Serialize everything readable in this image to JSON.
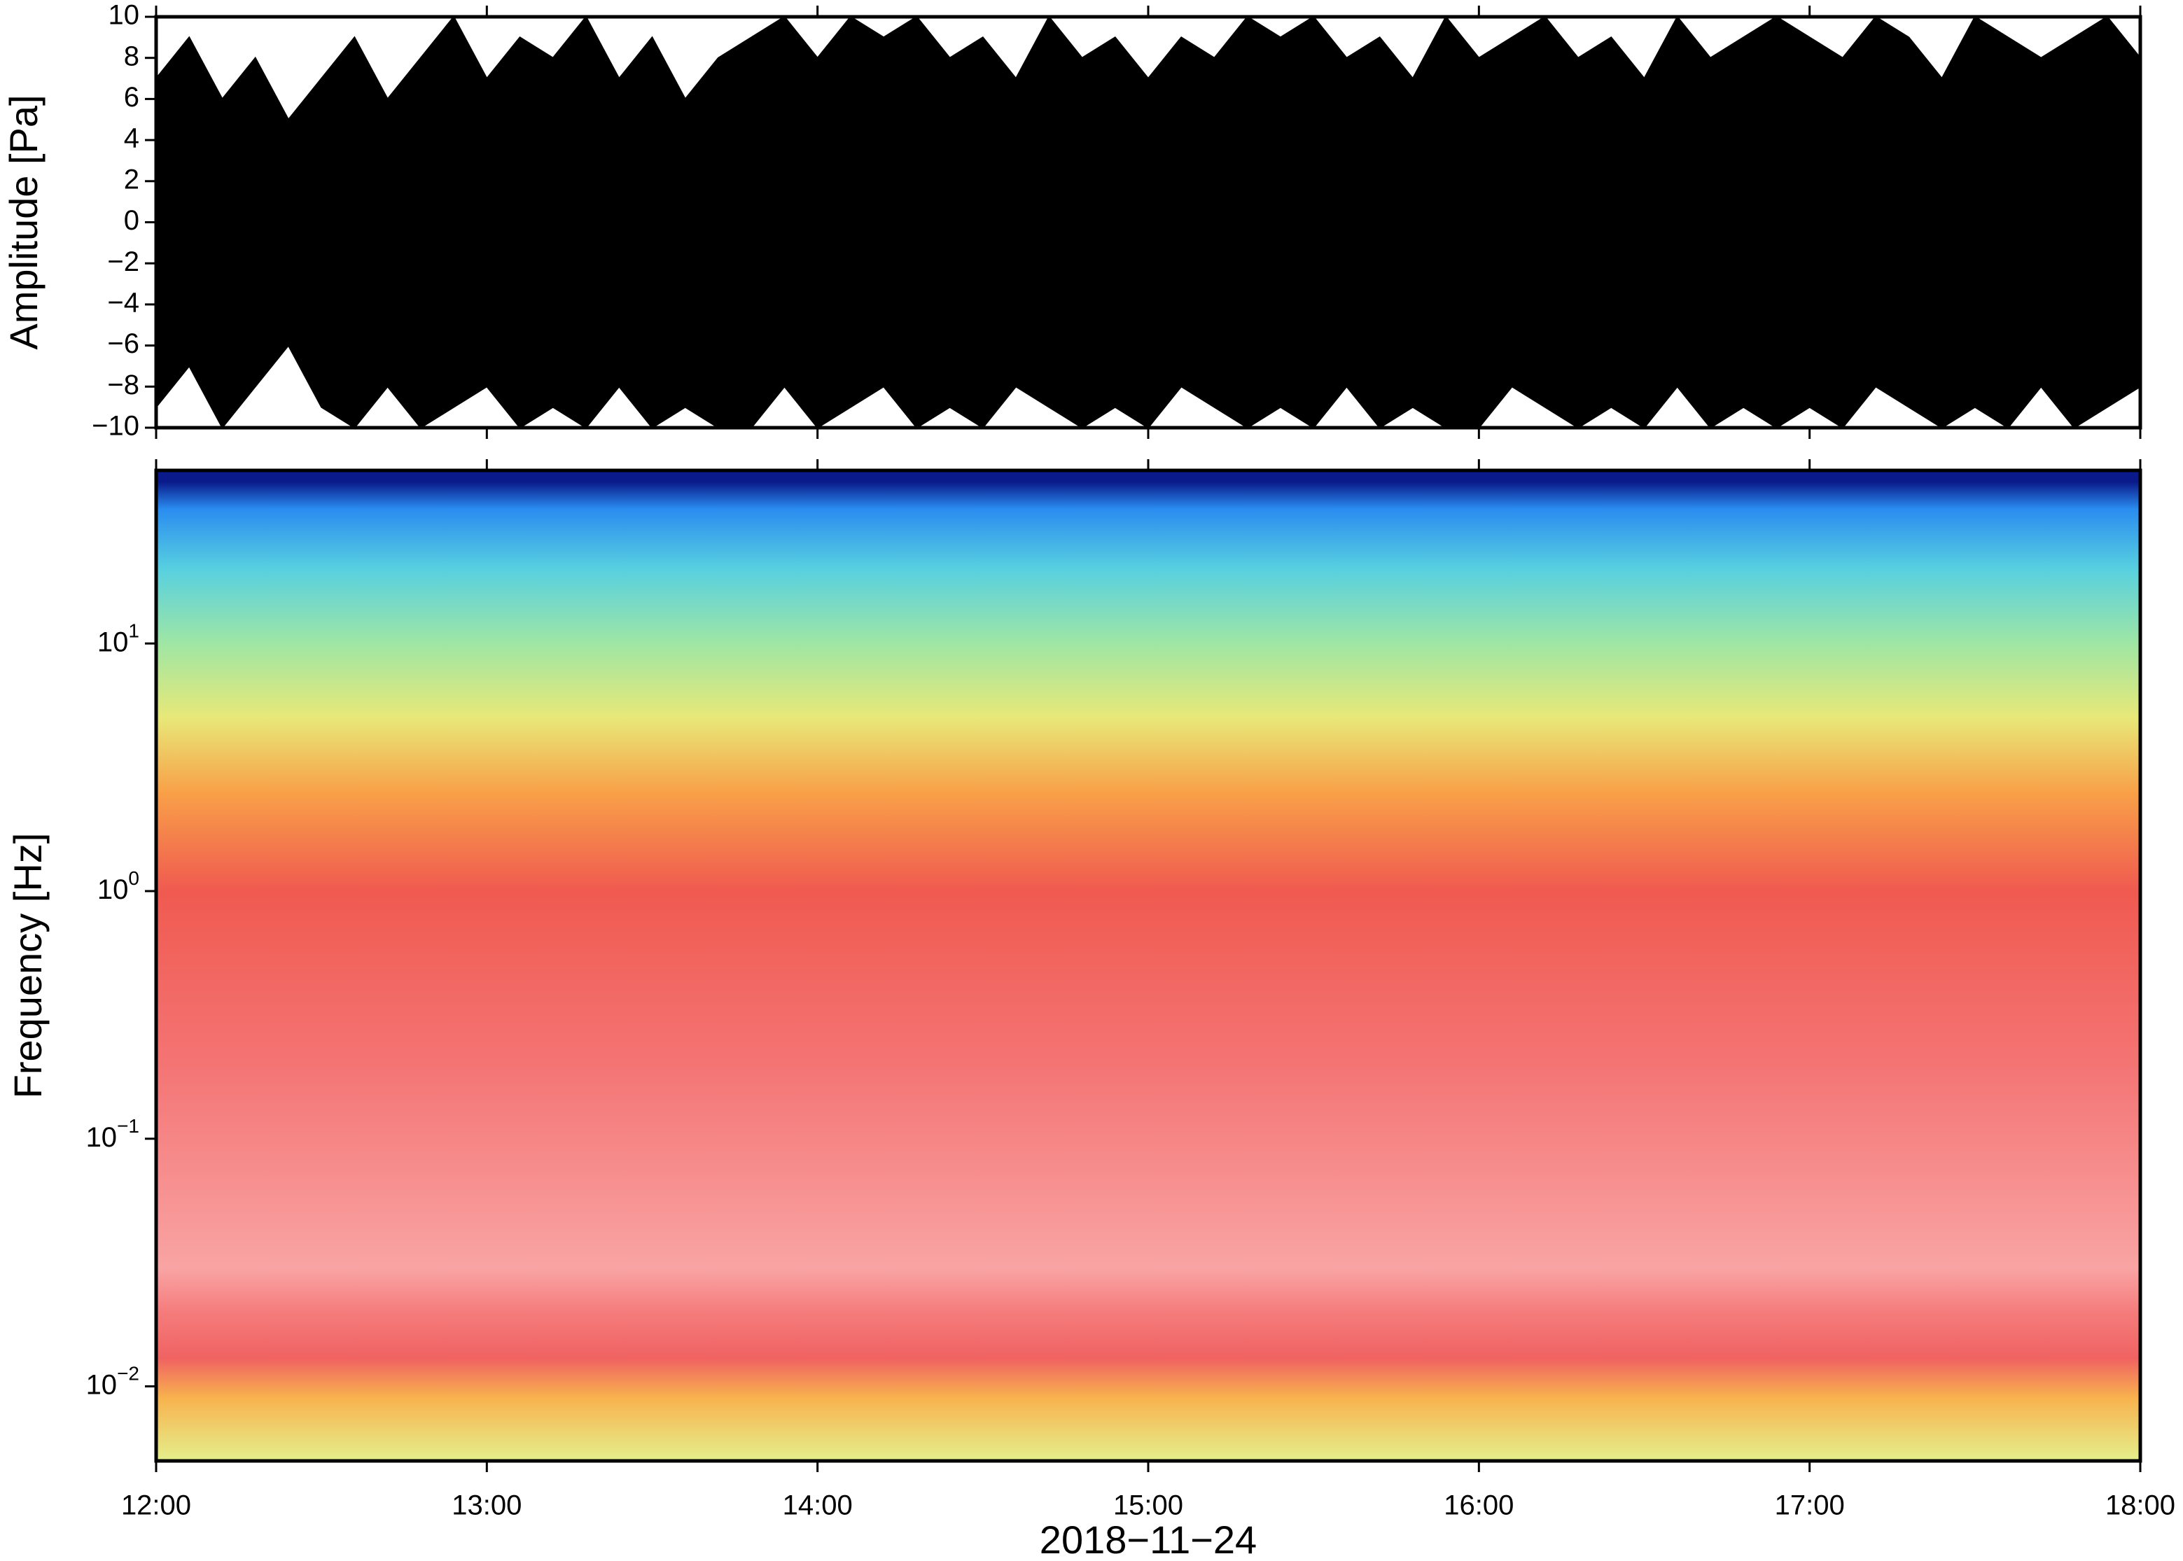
{
  "chart_data": [
    {
      "type": "area",
      "ylabel": "Amplitude [Pa]",
      "x": [
        12,
        12.1,
        12.2,
        12.3,
        12.4,
        12.5,
        12.6,
        12.7,
        12.8,
        12.9,
        13,
        13.1,
        13.2,
        13.3,
        13.4,
        13.5,
        13.6,
        13.7,
        13.8,
        13.9,
        14,
        14.1,
        14.2,
        14.3,
        14.4,
        14.5,
        14.6,
        14.7,
        14.8,
        14.9,
        15,
        15.1,
        15.2,
        15.3,
        15.4,
        15.5,
        15.6,
        15.7,
        15.8,
        15.9,
        16,
        16.1,
        16.2,
        16.3,
        16.4,
        16.5,
        16.6,
        16.7,
        16.8,
        16.9,
        17,
        17.1,
        17.2,
        17.3,
        17.4,
        17.5,
        17.6,
        17.7,
        17.8,
        17.9,
        18
      ],
      "series": [
        {
          "color": "#000000",
          "values": [
            7,
            9,
            6,
            8,
            5,
            7,
            9,
            6,
            8,
            10,
            7,
            9,
            8,
            10,
            7,
            9,
            6,
            8,
            9,
            10,
            8,
            10,
            9,
            10,
            8,
            9,
            7,
            10,
            8,
            9,
            7,
            9,
            8,
            10,
            9,
            10,
            8,
            9,
            7,
            10,
            8,
            9,
            10,
            8,
            9,
            7,
            10,
            8,
            9,
            10,
            9,
            8,
            10,
            9,
            7,
            10,
            9,
            8,
            9,
            10,
            8
          ]
        },
        {
          "color": "#000000",
          "values": [
            -9,
            -7,
            -10,
            -8,
            -6,
            -9,
            -10,
            -8,
            -10,
            -9,
            -8,
            -10,
            -9,
            -10,
            -8,
            -10,
            -9,
            -10,
            -10,
            -8,
            -10,
            -9,
            -8,
            -10,
            -9,
            -10,
            -8,
            -9,
            -10,
            -9,
            -10,
            -8,
            -9,
            -10,
            -9,
            -10,
            -8,
            -10,
            -9,
            -10,
            -10,
            -8,
            -9,
            -10,
            -9,
            -10,
            -8,
            -10,
            -9,
            -10,
            -9,
            -10,
            -8,
            -9,
            -10,
            -9,
            -10,
            -8,
            -10,
            -9,
            -8
          ]
        }
      ],
      "xlim": [
        12,
        18
      ],
      "xticks": [
        12,
        13,
        14,
        15,
        16,
        17,
        18
      ],
      "ylim": [
        -10,
        10
      ],
      "yticks": [
        {
          "value": -10,
          "label": "−10"
        },
        {
          "value": -8,
          "label": "−8"
        },
        {
          "value": -6,
          "label": "−6"
        },
        {
          "value": -4,
          "label": "−4"
        },
        {
          "value": -2,
          "label": "−2"
        },
        0,
        2,
        4,
        6,
        8,
        10
      ]
    },
    {
      "type": "heatmap",
      "ylabel": "Frequency [Hz]",
      "xlabel": "2018−11−24",
      "log_y": true,
      "freq_edges": [
        0.005,
        0.009,
        0.013,
        0.02,
        0.03,
        0.2,
        1,
        2.5,
        5,
        10,
        20,
        35,
        45,
        50
      ],
      "colors": [
        "#e4f08c",
        "#f8b24e",
        "#f06262",
        "#f57c7c",
        "#f9a4a4",
        "#f47474",
        "#f05a50",
        "#f8a048",
        "#e8e878",
        "#9fe6a4",
        "#58d0e0",
        "#2a8cf0",
        "#0a1a8a"
      ],
      "xlim": [
        12,
        18
      ],
      "xticks": [
        {
          "value": 12,
          "label": "12:00"
        },
        {
          "value": 13,
          "label": "13:00"
        },
        {
          "value": 14,
          "label": "14:00"
        },
        {
          "value": 15,
          "label": "15:00"
        },
        {
          "value": 16,
          "label": "16:00"
        },
        {
          "value": 17,
          "label": "17:00"
        },
        {
          "value": 18,
          "label": "18:00"
        }
      ],
      "ylim": [
        0.005,
        50
      ],
      "yticks": [
        {
          "value": 0.01,
          "label": "10",
          "exponent": "−2"
        },
        {
          "value": 0.1,
          "label": "10",
          "exponent": "−1"
        },
        {
          "value": 1,
          "label": "10",
          "exponent": "0"
        },
        {
          "value": 10,
          "label": "10",
          "exponent": "1"
        }
      ]
    }
  ]
}
